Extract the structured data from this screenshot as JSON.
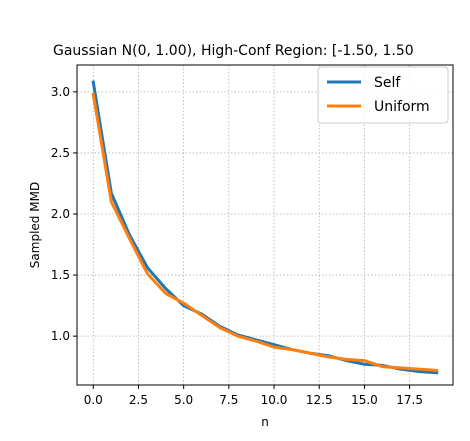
{
  "chart_data": {
    "type": "line",
    "title": "Gaussian N(0, 1.00), High-Conf Region: [-1.50, 1.50",
    "xlabel": "n",
    "ylabel": "Sampled MMD",
    "xlim": [
      -0.9,
      19.9
    ],
    "ylim": [
      0.6,
      3.22
    ],
    "xticks": [
      0.0,
      2.5,
      5.0,
      7.5,
      10.0,
      12.5,
      15.0,
      17.5
    ],
    "xtick_labels": [
      "0.0",
      "2.5",
      "5.0",
      "7.5",
      "10.0",
      "12.5",
      "15.0",
      "17.5"
    ],
    "yticks": [
      1.0,
      1.5,
      2.0,
      2.5,
      3.0
    ],
    "ytick_labels": [
      "1.0",
      "1.5",
      "2.0",
      "2.5",
      "3.0"
    ],
    "grid": true,
    "legend_position": "top-right",
    "x": [
      0,
      1,
      2,
      3,
      4,
      5,
      6,
      7,
      8,
      9,
      10,
      11,
      12,
      13,
      14,
      15,
      16,
      17,
      18,
      19
    ],
    "series": [
      {
        "name": "Self",
        "color": "#1f77b4",
        "values": [
          3.08,
          2.17,
          1.83,
          1.56,
          1.39,
          1.25,
          1.18,
          1.08,
          1.01,
          0.97,
          0.93,
          0.89,
          0.86,
          0.84,
          0.8,
          0.77,
          0.76,
          0.73,
          0.71,
          0.7
        ]
      },
      {
        "name": "Uniform",
        "color": "#ff7f0e",
        "values": [
          2.98,
          2.1,
          1.8,
          1.51,
          1.35,
          1.27,
          1.17,
          1.07,
          1.0,
          0.96,
          0.91,
          0.89,
          0.86,
          0.83,
          0.81,
          0.8,
          0.75,
          0.74,
          0.73,
          0.72
        ]
      }
    ]
  }
}
